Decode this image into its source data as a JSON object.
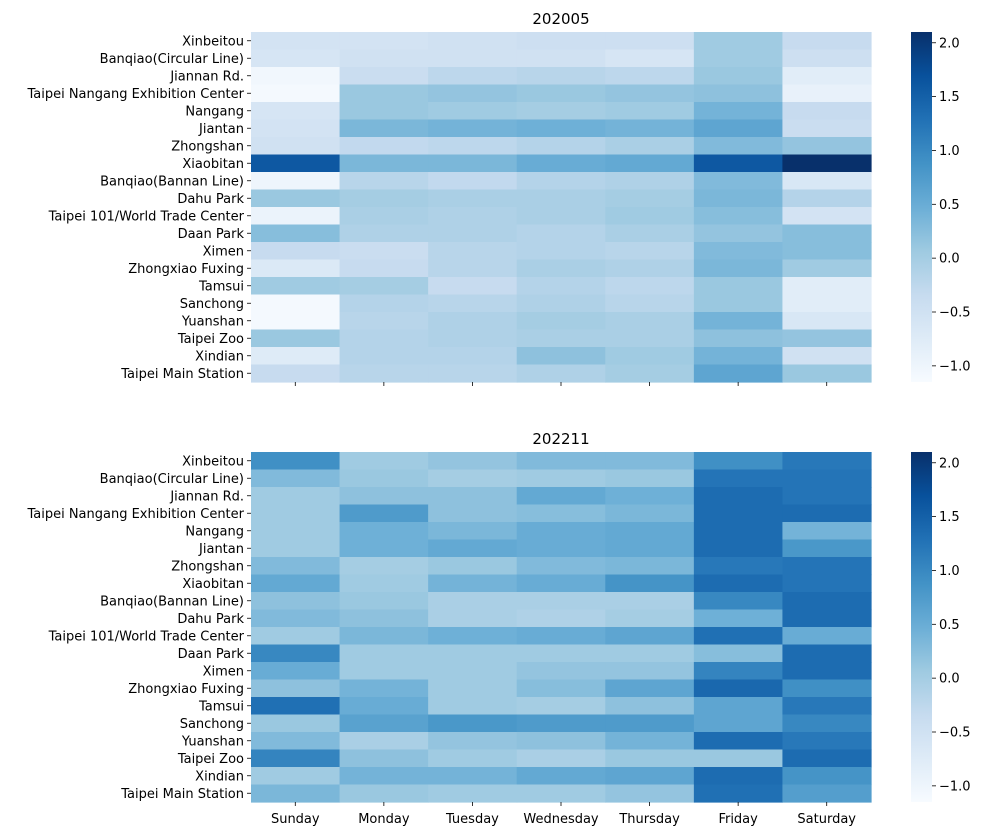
{
  "chart_data": [
    {
      "type": "heatmap",
      "title": "202005",
      "days": [
        "Sunday",
        "Monday",
        "Tuesday",
        "Wednesday",
        "Thursday",
        "Friday",
        "Saturday"
      ],
      "stations": [
        "Xinbeitou",
        "Banqiao(Circular Line)",
        "Jiannan Rd. ",
        "Taipei Nangang Exhibition Center",
        "Nangang ",
        "Jiantan ",
        "Zhongshan ",
        "Xiaobitan",
        "Banqiao(Bannan Line)",
        "Dahu Park ",
        "Taipei 101/World Trade Center",
        "Daan Park ",
        "Ximen ",
        "Zhongxiao Fuxing",
        "Tamsui",
        "Sanchong ",
        "Yuanshan",
        "Taipei Zoo",
        "Xindian ",
        "Taipei Main Station"
      ],
      "values": [
        [
          -0.55,
          -0.55,
          -0.5,
          -0.45,
          -0.45,
          0.05,
          -0.35
        ],
        [
          -0.6,
          -0.5,
          -0.5,
          -0.5,
          -0.6,
          0.05,
          -0.45
        ],
        [
          -1.05,
          -0.4,
          -0.25,
          -0.2,
          -0.25,
          0.1,
          -0.8
        ],
        [
          -1.1,
          0.1,
          0.15,
          0.1,
          0.15,
          0.2,
          -0.9
        ],
        [
          -0.6,
          0.1,
          0.05,
          0.0,
          0.05,
          0.4,
          -0.35
        ],
        [
          -0.55,
          0.35,
          0.4,
          0.45,
          0.4,
          0.6,
          -0.4
        ],
        [
          -0.5,
          -0.3,
          -0.25,
          -0.15,
          -0.05,
          0.3,
          0.15
        ],
        [
          1.6,
          0.35,
          0.35,
          0.5,
          0.55,
          1.6,
          2.1
        ],
        [
          -1.0,
          -0.2,
          -0.3,
          -0.15,
          -0.1,
          0.3,
          -0.65
        ],
        [
          0.1,
          0.0,
          -0.05,
          -0.05,
          0.0,
          0.35,
          -0.15
        ],
        [
          -0.95,
          -0.05,
          -0.1,
          -0.05,
          0.05,
          0.25,
          -0.55
        ],
        [
          0.25,
          -0.1,
          -0.1,
          -0.15,
          -0.05,
          0.15,
          0.25
        ],
        [
          -0.35,
          -0.4,
          -0.2,
          -0.15,
          -0.2,
          0.3,
          0.25
        ],
        [
          -0.7,
          -0.35,
          -0.2,
          -0.05,
          -0.1,
          0.35,
          0.05
        ],
        [
          0.05,
          0.0,
          -0.35,
          -0.15,
          -0.25,
          0.1,
          -0.8
        ],
        [
          -1.1,
          -0.15,
          -0.2,
          -0.1,
          -0.2,
          0.1,
          -0.8
        ],
        [
          -1.1,
          -0.2,
          -0.1,
          0.0,
          -0.05,
          0.4,
          -0.65
        ],
        [
          0.1,
          -0.15,
          -0.1,
          -0.05,
          -0.05,
          0.2,
          0.15
        ],
        [
          -0.75,
          -0.15,
          -0.15,
          0.2,
          0.05,
          0.4,
          -0.5
        ],
        [
          -0.35,
          -0.2,
          -0.2,
          -0.1,
          0.0,
          0.6,
          0.1
        ]
      ],
      "colorbar": {
        "min": -1.15,
        "max": 2.1,
        "ticks": [
          "2.0",
          "1.5",
          "1.0",
          "0.5",
          "0.0",
          "−0.5",
          "−1.0"
        ],
        "tick_values": [
          2.0,
          1.5,
          1.0,
          0.5,
          0.0,
          -0.5,
          -1.0
        ]
      },
      "x_tick_labels_visible": false
    },
    {
      "type": "heatmap",
      "title": "202211",
      "days": [
        "Sunday",
        "Monday",
        "Tuesday",
        "Wednesday",
        "Thursday",
        "Friday",
        "Saturday"
      ],
      "stations": [
        "Xinbeitou",
        "Banqiao(Circular Line)",
        "Jiannan Rd. ",
        "Taipei Nangang Exhibition Center",
        "Nangang ",
        "Jiantan ",
        "Zhongshan ",
        "Xiaobitan",
        "Banqiao(Bannan Line)",
        "Dahu Park ",
        "Taipei 101/World Trade Center",
        "Daan Park ",
        "Ximen ",
        "Zhongxiao Fuxing",
        "Tamsui",
        "Sanchong ",
        "Yuanshan",
        "Taipei Zoo",
        "Xindian ",
        "Taipei Main Station"
      ],
      "values": [
        [
          0.9,
          0.05,
          0.15,
          0.3,
          0.3,
          0.9,
          1.2
        ],
        [
          0.3,
          0.1,
          0.0,
          0.05,
          0.1,
          1.25,
          1.25
        ],
        [
          0.05,
          0.2,
          0.2,
          0.55,
          0.45,
          1.35,
          1.25
        ],
        [
          0.05,
          0.75,
          0.2,
          0.25,
          0.35,
          1.35,
          1.35
        ],
        [
          0.05,
          0.45,
          0.35,
          0.5,
          0.55,
          1.35,
          0.4
        ],
        [
          0.05,
          0.45,
          0.55,
          0.5,
          0.55,
          1.35,
          0.8
        ],
        [
          0.3,
          0.0,
          0.1,
          0.3,
          0.35,
          1.2,
          1.25
        ],
        [
          0.55,
          0.05,
          0.4,
          0.5,
          0.85,
          1.35,
          1.25
        ],
        [
          0.2,
          0.1,
          -0.05,
          -0.05,
          -0.05,
          1.0,
          1.35
        ],
        [
          0.3,
          0.2,
          -0.05,
          -0.1,
          0.0,
          0.45,
          1.35
        ],
        [
          0.05,
          0.35,
          0.45,
          0.5,
          0.6,
          1.3,
          0.5
        ],
        [
          1.0,
          0.05,
          0.05,
          0.05,
          0.05,
          0.25,
          1.35
        ],
        [
          0.5,
          0.05,
          0.05,
          0.15,
          0.15,
          1.05,
          1.35
        ],
        [
          0.2,
          0.4,
          0.05,
          0.25,
          0.6,
          1.4,
          0.9
        ],
        [
          1.3,
          0.5,
          0.05,
          0.0,
          0.2,
          0.6,
          1.2
        ],
        [
          0.1,
          0.65,
          0.8,
          0.75,
          0.75,
          0.6,
          1.0
        ],
        [
          0.3,
          -0.05,
          0.15,
          0.2,
          0.4,
          1.35,
          1.2
        ],
        [
          1.05,
          0.2,
          0.05,
          -0.05,
          0.1,
          0.1,
          1.35
        ],
        [
          0.05,
          0.4,
          0.4,
          0.55,
          0.6,
          1.35,
          0.85
        ],
        [
          0.35,
          0.1,
          0.05,
          0.05,
          0.15,
          1.3,
          0.7
        ]
      ],
      "colorbar": {
        "min": -1.15,
        "max": 2.1,
        "ticks": [
          "2.0",
          "1.5",
          "1.0",
          "0.5",
          "0.0",
          "−0.5",
          "−1.0"
        ],
        "tick_values": [
          2.0,
          1.5,
          1.0,
          0.5,
          0.0,
          -0.5,
          -1.0
        ]
      },
      "x_tick_labels_visible": true
    }
  ],
  "colormap": [
    "#f7fbff",
    "#deebf7",
    "#c6dbef",
    "#9ecae1",
    "#6baed6",
    "#4292c6",
    "#2171b5",
    "#08519c",
    "#08306b"
  ]
}
